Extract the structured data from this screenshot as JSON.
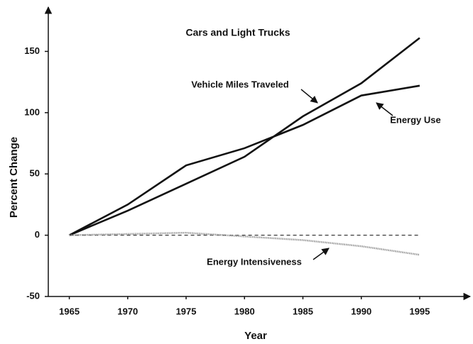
{
  "chart_data": {
    "type": "line",
    "title": "Cars and Light Trucks",
    "x_label": "Year",
    "y_label": "Percent Change",
    "x": [
      1965,
      1970,
      1975,
      1980,
      1985,
      1990,
      1995
    ],
    "series": [
      {
        "name": "Vehicle Miles Traveled",
        "color": "#111111",
        "values": [
          0,
          20,
          42,
          64,
          97,
          124,
          161
        ]
      },
      {
        "name": "Energy Use",
        "color": "#111111",
        "values": [
          0,
          25,
          57,
          71,
          90,
          114,
          122
        ]
      },
      {
        "name": "Energy Intensiveness",
        "color": "#9a9a9a",
        "values": [
          0,
          1,
          2,
          -1,
          -4,
          -9,
          -16
        ]
      }
    ],
    "xlim": [
      1963.2,
      1999.2
    ],
    "xticks": [
      1965,
      1970,
      1975,
      1980,
      1985,
      1990,
      1995
    ],
    "ylim": [
      -50,
      185
    ],
    "yticks": [
      -50,
      0,
      50,
      100,
      150
    ]
  }
}
